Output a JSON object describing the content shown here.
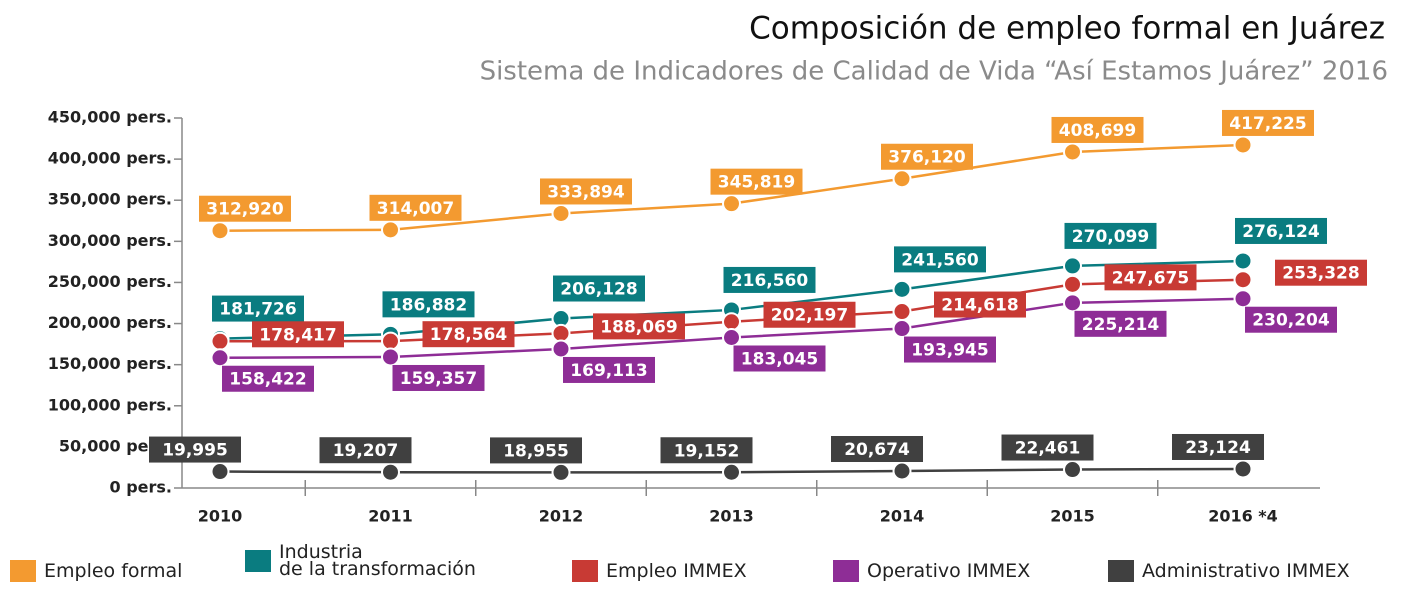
{
  "chart_data": {
    "type": "line",
    "title": "Composición de empleo formal en Juárez",
    "subtitle": "Sistema de Indicadores de Calidad de Vida “Así Estamos Juárez” 2016",
    "categories": [
      "2010",
      "2011",
      "2012",
      "2013",
      "2014",
      "2015",
      "2016 *4"
    ],
    "ylim": [
      0,
      450000
    ],
    "yticks": [
      {
        "value": 0,
        "label": "0 pers."
      },
      {
        "value": 50000,
        "label": "50,000 pers."
      },
      {
        "value": 100000,
        "label": "100,000 pers."
      },
      {
        "value": 150000,
        "label": "150,000 pers."
      },
      {
        "value": 200000,
        "label": "200,000 pers."
      },
      {
        "value": 250000,
        "label": "250,000 pers."
      },
      {
        "value": 300000,
        "label": "300,000 pers."
      },
      {
        "value": 350000,
        "label": "350,000 pers."
      },
      {
        "value": 400000,
        "label": "400,000 pers."
      },
      {
        "value": 450000,
        "label": "450,000 pers."
      }
    ],
    "legend": "bottom",
    "series": [
      {
        "name": "Empleo formal",
        "color": "#f39a30",
        "values": [
          312920,
          314007,
          333894,
          345819,
          376120,
          408699,
          417225
        ],
        "value_labels": [
          "312,920",
          "314,007",
          "333,894",
          "345,819",
          "376,120",
          "408,699",
          "417,225"
        ]
      },
      {
        "name": "Industria\nde la transformación",
        "color": "#0a7c80",
        "values": [
          181726,
          186882,
          206128,
          216560,
          241560,
          270099,
          276124
        ],
        "value_labels": [
          "181,726",
          "186,882",
          "206,128",
          "216,560",
          "241,560",
          "270,099",
          "276,124"
        ]
      },
      {
        "name": "Empleo IMMEX",
        "color": "#c83a34",
        "values": [
          178417,
          178564,
          188069,
          202197,
          214618,
          247675,
          253328
        ],
        "value_labels": [
          "178,417",
          "178,564",
          "188,069",
          "202,197",
          "214,618",
          "247,675",
          "253,328"
        ]
      },
      {
        "name": "Operativo IMMEX",
        "color": "#8e2d96",
        "values": [
          158422,
          159357,
          169113,
          183045,
          193945,
          225214,
          230204
        ],
        "value_labels": [
          "158,422",
          "159,357",
          "169,113",
          "183,045",
          "193,945",
          "225,214",
          "230,204"
        ]
      },
      {
        "name": "Administrativo IMMEX",
        "color": "#404040",
        "values": [
          19995,
          19207,
          18955,
          19152,
          20674,
          22461,
          23124
        ],
        "value_labels": [
          "19,995",
          "19,207",
          "18,955",
          "19,152",
          "20,674",
          "22,461",
          "23,124"
        ]
      }
    ]
  }
}
